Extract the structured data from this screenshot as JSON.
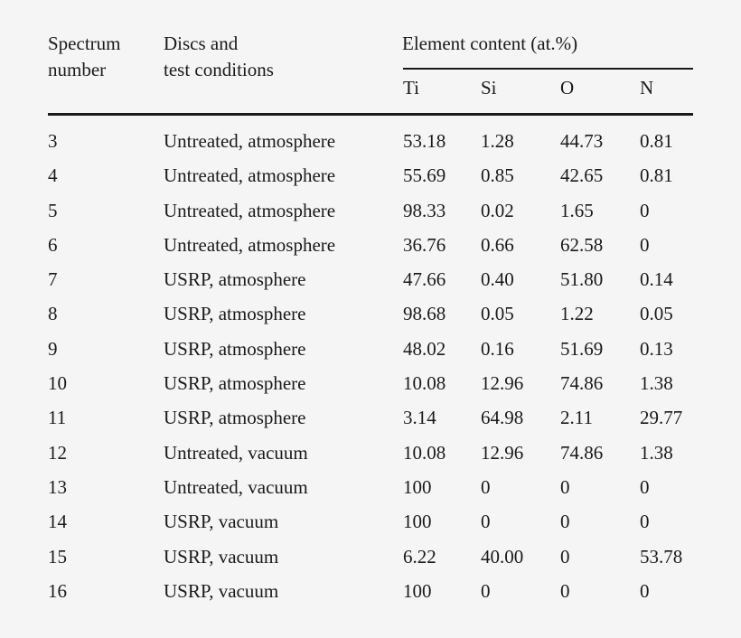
{
  "table": {
    "headers": {
      "spectrum": [
        "Spectrum",
        "number"
      ],
      "discs": [
        "Discs and",
        "test conditions"
      ],
      "element_group": "Element content (at.%)",
      "elements": [
        "Ti",
        "Si",
        "O",
        "N"
      ]
    },
    "rows": [
      {
        "spectrum": "3",
        "condition": "Untreated, atmosphere",
        "Ti": "53.18",
        "Si": "1.28",
        "O": "44.73",
        "N": "0.81"
      },
      {
        "spectrum": "4",
        "condition": "Untreated, atmosphere",
        "Ti": "55.69",
        "Si": "0.85",
        "O": "42.65",
        "N": "0.81"
      },
      {
        "spectrum": "5",
        "condition": "Untreated, atmosphere",
        "Ti": "98.33",
        "Si": "0.02",
        "O": "1.65",
        "N": "0"
      },
      {
        "spectrum": "6",
        "condition": "Untreated, atmosphere",
        "Ti": "36.76",
        "Si": "0.66",
        "O": "62.58",
        "N": "0"
      },
      {
        "spectrum": "7",
        "condition": "USRP, atmosphere",
        "Ti": "47.66",
        "Si": "0.40",
        "O": "51.80",
        "N": "0.14"
      },
      {
        "spectrum": "8",
        "condition": "USRP, atmosphere",
        "Ti": "98.68",
        "Si": "0.05",
        "O": "1.22",
        "N": "0.05"
      },
      {
        "spectrum": "9",
        "condition": "USRP, atmosphere",
        "Ti": "48.02",
        "Si": "0.16",
        "O": "51.69",
        "N": "0.13"
      },
      {
        "spectrum": "10",
        "condition": "USRP, atmosphere",
        "Ti": "10.08",
        "Si": "12.96",
        "O": "74.86",
        "N": "1.38"
      },
      {
        "spectrum": "11",
        "condition": "USRP, atmosphere",
        "Ti": "3.14",
        "Si": "64.98",
        "O": "2.11",
        "N": "29.77"
      },
      {
        "spectrum": "12",
        "condition": "Untreated, vacuum",
        "Ti": "10.08",
        "Si": "12.96",
        "O": "74.86",
        "N": "1.38"
      },
      {
        "spectrum": "13",
        "condition": "Untreated, vacuum",
        "Ti": "100",
        "Si": "0",
        "O": "0",
        "N": "0"
      },
      {
        "spectrum": "14",
        "condition": "USRP, vacuum",
        "Ti": "100",
        "Si": "0",
        "O": "0",
        "N": "0"
      },
      {
        "spectrum": "15",
        "condition": "USRP, vacuum",
        "Ti": "6.22",
        "Si": "40.00",
        "O": "0",
        "N": "53.78"
      },
      {
        "spectrum": "16",
        "condition": "USRP, vacuum",
        "Ti": "100",
        "Si": "0",
        "O": "0",
        "N": "0"
      }
    ]
  }
}
